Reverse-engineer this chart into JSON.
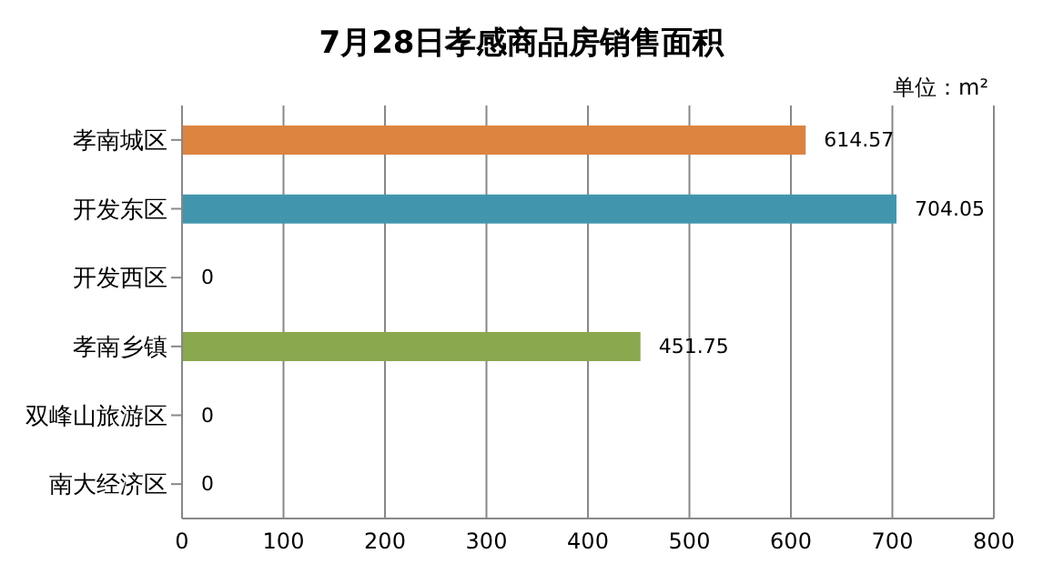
{
  "chart_data": {
    "type": "bar",
    "orientation": "horizontal",
    "title": "7月28日孝感商品房销售面积",
    "annotations": [
      "单位：m²"
    ],
    "categories": [
      "孝南城区",
      "开发东区",
      "开发西区",
      "孝南乡镇",
      "双峰山旅游区",
      "南大经济区"
    ],
    "values": [
      614.57,
      704.05,
      0,
      451.75,
      0,
      0
    ],
    "colors": [
      "#dc8340",
      "#4196ae",
      "#8aa84e",
      "#8aa84e",
      "#8aa84e",
      "#8aa84e"
    ],
    "xlim": [
      0,
      800
    ],
    "xticks": [
      0,
      100,
      200,
      300,
      400,
      500,
      600,
      700,
      800
    ],
    "grid": "x",
    "data_labels": true
  }
}
